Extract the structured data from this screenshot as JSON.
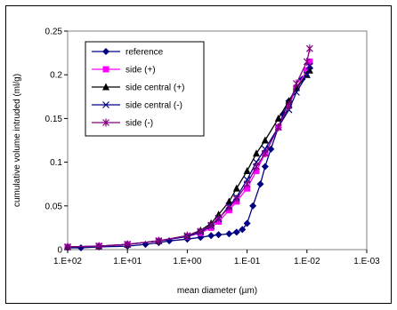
{
  "chart_data": {
    "type": "line",
    "x_scale": "log-reversed",
    "xlim": [
      100,
      0.001
    ],
    "ylim": [
      0,
      0.25
    ],
    "xlabel": "mean diameter (µm)",
    "ylabel": "cumulative volume intruded (ml/g)",
    "x_ticks": [
      "1.E+02",
      "1.E+01",
      "1.E+00",
      "1.E-01",
      "1.E-02",
      "1.E-03"
    ],
    "y_ticks": [
      "0",
      "0.05",
      "0.1",
      "0.15",
      "0.2",
      "0.25"
    ],
    "grid": false,
    "legend_position": "top-left",
    "series": [
      {
        "name": "reference",
        "color": "#000080",
        "marker": "diamond",
        "x": [
          100,
          60,
          30,
          10,
          5,
          3,
          2,
          1,
          0.6,
          0.4,
          0.3,
          0.2,
          0.15,
          0.12,
          0.1,
          0.08,
          0.06,
          0.05,
          0.04,
          0.03,
          0.025,
          0.02,
          0.015,
          0.012,
          0.01,
          0.009
        ],
        "y": [
          0.002,
          0.002,
          0.003,
          0.004,
          0.006,
          0.008,
          0.01,
          0.012,
          0.014,
          0.016,
          0.017,
          0.018,
          0.02,
          0.023,
          0.03,
          0.05,
          0.075,
          0.095,
          0.115,
          0.14,
          0.155,
          0.17,
          0.185,
          0.195,
          0.205,
          0.208
        ]
      },
      {
        "name": "side (+)",
        "color": "#ff00ff",
        "marker": "square",
        "x": [
          100,
          30,
          10,
          3,
          1,
          0.6,
          0.4,
          0.3,
          0.2,
          0.15,
          0.1,
          0.07,
          0.05,
          0.03,
          0.02,
          0.015,
          0.01,
          0.009
        ],
        "y": [
          0.003,
          0.004,
          0.006,
          0.01,
          0.015,
          0.019,
          0.025,
          0.032,
          0.045,
          0.055,
          0.07,
          0.09,
          0.11,
          0.14,
          0.165,
          0.185,
          0.205,
          0.215
        ]
      },
      {
        "name": "side central (+)",
        "color": "#000000",
        "marker": "triangle",
        "x": [
          100,
          30,
          10,
          3,
          1,
          0.6,
          0.4,
          0.3,
          0.2,
          0.15,
          0.1,
          0.07,
          0.05,
          0.03,
          0.02,
          0.015,
          0.01,
          0.009
        ],
        "y": [
          0.003,
          0.004,
          0.006,
          0.01,
          0.016,
          0.022,
          0.03,
          0.04,
          0.055,
          0.07,
          0.09,
          0.11,
          0.125,
          0.15,
          0.17,
          0.185,
          0.2,
          0.205
        ]
      },
      {
        "name": "side central (-)",
        "color": "#000080",
        "marker": "x",
        "x": [
          100,
          30,
          10,
          3,
          1,
          0.6,
          0.4,
          0.3,
          0.2,
          0.15,
          0.1,
          0.07,
          0.05,
          0.03,
          0.02,
          0.015,
          0.01,
          0.009
        ],
        "y": [
          0.003,
          0.004,
          0.006,
          0.01,
          0.015,
          0.02,
          0.027,
          0.035,
          0.05,
          0.06,
          0.08,
          0.1,
          0.115,
          0.14,
          0.16,
          0.18,
          0.2,
          0.21
        ]
      },
      {
        "name": "side (-)",
        "color": "#800080",
        "marker": "asterisk",
        "x": [
          100,
          30,
          10,
          3,
          1,
          0.6,
          0.4,
          0.3,
          0.2,
          0.15,
          0.1,
          0.07,
          0.05,
          0.03,
          0.02,
          0.015,
          0.01,
          0.009
        ],
        "y": [
          0.003,
          0.004,
          0.006,
          0.01,
          0.016,
          0.021,
          0.028,
          0.036,
          0.048,
          0.058,
          0.075,
          0.095,
          0.11,
          0.14,
          0.165,
          0.19,
          0.215,
          0.23
        ]
      }
    ]
  }
}
